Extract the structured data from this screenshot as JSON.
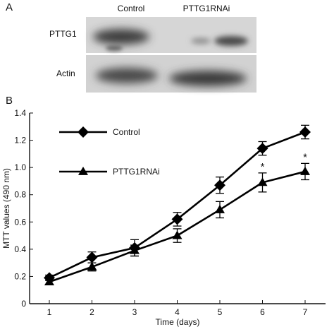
{
  "panel_a": {
    "letter": "A",
    "lanes": [
      "Control",
      "PTTG1RNAi"
    ],
    "rows": [
      "PTTG1",
      "Actin"
    ]
  },
  "panel_b": {
    "letter": "B"
  },
  "chart_data": {
    "type": "line",
    "xlabel": "Time (days)",
    "ylabel": "MTT values (490 nm)",
    "categories": [
      1,
      2,
      3,
      4,
      5,
      6,
      7
    ],
    "ylim": [
      0,
      1.4
    ],
    "yticks": [
      "0",
      "0.2",
      "0.4",
      "0.6",
      "0.8",
      "1.0",
      "1.2",
      "1.4"
    ],
    "grid": false,
    "legend_position": "top-left",
    "series": [
      {
        "name": "Control",
        "marker": "diamond",
        "values": [
          0.19,
          0.34,
          0.41,
          0.62,
          0.87,
          1.14,
          1.26
        ],
        "errors": [
          0.02,
          0.04,
          0.06,
          0.05,
          0.06,
          0.05,
          0.05
        ]
      },
      {
        "name": "PTTG1RNAi",
        "marker": "triangle",
        "values": [
          0.16,
          0.27,
          0.39,
          0.5,
          0.69,
          0.89,
          0.97
        ],
        "errors": [
          0.02,
          0.03,
          0.04,
          0.05,
          0.06,
          0.07,
          0.06
        ],
        "annotations": [
          {
            "x": 6,
            "text": "*"
          },
          {
            "x": 7,
            "text": "*"
          }
        ]
      }
    ]
  }
}
